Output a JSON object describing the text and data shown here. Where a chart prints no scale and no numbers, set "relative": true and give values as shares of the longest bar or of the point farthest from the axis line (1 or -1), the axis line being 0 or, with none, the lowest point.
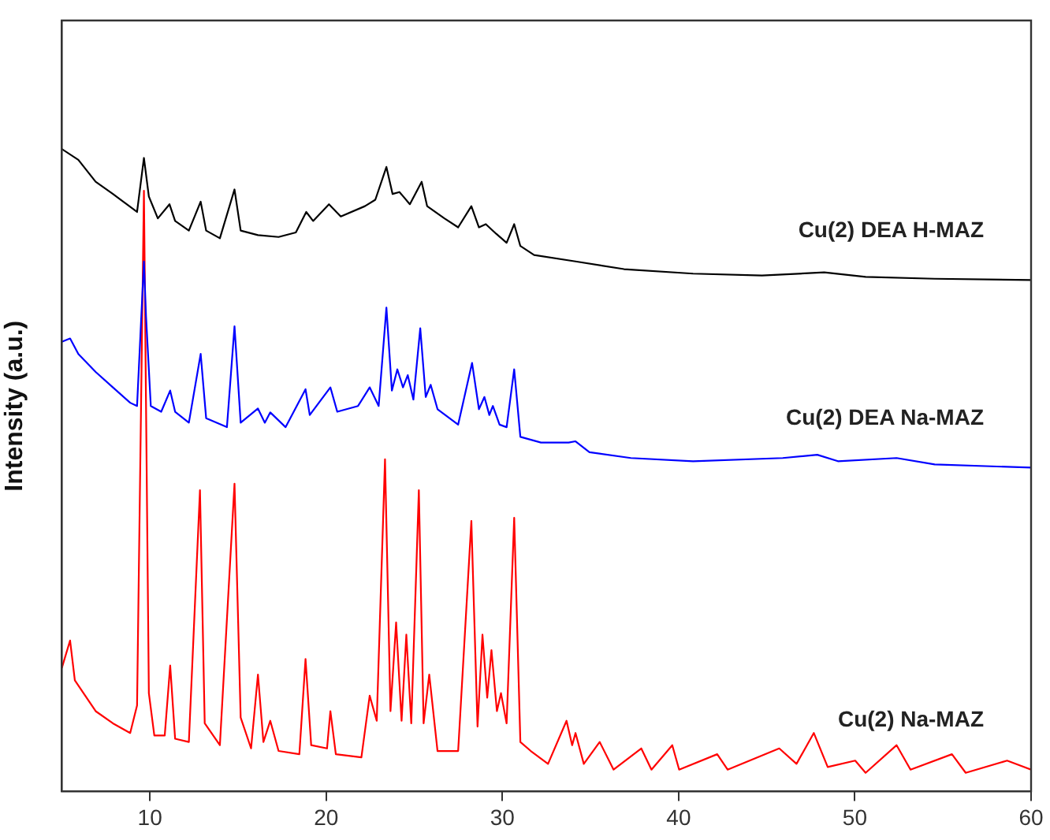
{
  "chart_data": {
    "type": "line",
    "ylabel": "Intensity (a.u.)",
    "relative": true,
    "xlim": [
      5,
      60
    ],
    "xticks": [
      10,
      20,
      30,
      40,
      50,
      60
    ],
    "grid": false,
    "legend": false,
    "series": [
      {
        "name": "Cu(2) DEA H-MAZ",
        "color": "#000000",
        "x": [
          5,
          5.94,
          6.92,
          7.9,
          9.27,
          9.66,
          9.94,
          10.45,
          11.11,
          11.43,
          12.21,
          12.88,
          13.19,
          13.97,
          14.8,
          15.15,
          16.13,
          17.3,
          18.28,
          18.87,
          19.26,
          20.16,
          20.83,
          22.2,
          22.79,
          23.42,
          23.77,
          24.16,
          24.75,
          25.42,
          25.73,
          26.71,
          27.49,
          28.24,
          28.67,
          29.06,
          29.65,
          30.24,
          30.67,
          31.02,
          31.8,
          34.15,
          36.9,
          40.82,
          44.73,
          48.26,
          50.61,
          54.53,
          60
        ],
        "values": [
          1.0,
          0.983,
          0.949,
          0.93,
          0.902,
          0.986,
          0.926,
          0.892,
          0.914,
          0.888,
          0.873,
          0.918,
          0.873,
          0.861,
          0.937,
          0.873,
          0.866,
          0.863,
          0.87,
          0.902,
          0.888,
          0.914,
          0.895,
          0.911,
          0.921,
          0.972,
          0.93,
          0.933,
          0.914,
          0.949,
          0.911,
          0.892,
          0.878,
          0.911,
          0.878,
          0.883,
          0.868,
          0.854,
          0.883,
          0.849,
          0.835,
          0.825,
          0.813,
          0.806,
          0.803,
          0.808,
          0.801,
          0.798,
          0.796
        ]
      },
      {
        "name": "Cu(2) DEA Na-MAZ",
        "color": "#0000ff",
        "x": [
          5,
          5.47,
          5.94,
          6.92,
          7.9,
          8.88,
          9.27,
          9.66,
          9.78,
          10.05,
          10.64,
          11.15,
          11.43,
          12.21,
          12.88,
          13.19,
          14.37,
          14.8,
          15.15,
          16.13,
          16.52,
          16.83,
          17.7,
          18.83,
          19.07,
          20.24,
          20.63,
          21.81,
          22.47,
          22.98,
          23.42,
          23.73,
          24.04,
          24.36,
          24.63,
          24.95,
          25.34,
          25.65,
          25.93,
          26.32,
          27.49,
          28.28,
          28.67,
          28.98,
          29.26,
          29.46,
          29.84,
          30.24,
          30.67,
          31.02,
          32.19,
          33.76,
          34.15,
          34.94,
          37.29,
          40.82,
          45.91,
          47.87,
          49.04,
          52.37,
          54.53,
          60
        ],
        "values": [
          0.7,
          0.705,
          0.681,
          0.653,
          0.629,
          0.605,
          0.6,
          0.825,
          0.739,
          0.6,
          0.591,
          0.624,
          0.591,
          0.574,
          0.681,
          0.581,
          0.567,
          0.724,
          0.574,
          0.596,
          0.574,
          0.59,
          0.567,
          0.626,
          0.586,
          0.629,
          0.591,
          0.6,
          0.629,
          0.6,
          0.753,
          0.624,
          0.657,
          0.629,
          0.648,
          0.61,
          0.721,
          0.614,
          0.633,
          0.595,
          0.571,
          0.667,
          0.595,
          0.614,
          0.586,
          0.6,
          0.571,
          0.567,
          0.657,
          0.552,
          0.543,
          0.543,
          0.545,
          0.528,
          0.519,
          0.514,
          0.519,
          0.524,
          0.514,
          0.519,
          0.509,
          0.504
        ]
      },
      {
        "name": "Cu(2) Na-MAZ",
        "color": "#ff0000",
        "x": [
          5,
          5.47,
          5.74,
          6.92,
          7.9,
          8.88,
          9.27,
          9.66,
          9.94,
          10.25,
          10.84,
          11.15,
          11.43,
          12.21,
          12.84,
          13.11,
          13.97,
          14.8,
          15.15,
          15.74,
          16.13,
          16.44,
          16.83,
          17.3,
          18.48,
          18.83,
          19.15,
          20.05,
          20.24,
          20.55,
          22.0,
          22.47,
          22.87,
          23.34,
          23.65,
          23.97,
          24.28,
          24.55,
          24.83,
          25.26,
          25.53,
          25.85,
          26.32,
          27.49,
          28.24,
          28.59,
          28.87,
          29.14,
          29.38,
          29.69,
          29.92,
          30.24,
          30.67,
          31.02,
          31.61,
          32.59,
          33.64,
          33.96,
          34.15,
          34.62,
          35.52,
          36.31,
          37.88,
          38.46,
          39.64,
          40.03,
          42.19,
          42.78,
          45.71,
          46.69,
          47.67,
          48.46,
          50.02,
          50.61,
          52.37,
          53.16,
          55.51,
          56.29,
          58.64,
          60
        ],
        "values": [
          0.192,
          0.235,
          0.173,
          0.125,
          0.106,
          0.091,
          0.134,
          0.935,
          0.153,
          0.087,
          0.087,
          0.196,
          0.082,
          0.077,
          0.469,
          0.106,
          0.072,
          0.479,
          0.115,
          0.067,
          0.182,
          0.077,
          0.11,
          0.063,
          0.058,
          0.206,
          0.072,
          0.067,
          0.125,
          0.058,
          0.053,
          0.149,
          0.11,
          0.517,
          0.125,
          0.263,
          0.11,
          0.244,
          0.106,
          0.469,
          0.106,
          0.182,
          0.063,
          0.063,
          0.421,
          0.101,
          0.244,
          0.146,
          0.22,
          0.125,
          0.153,
          0.106,
          0.426,
          0.077,
          0.063,
          0.043,
          0.11,
          0.072,
          0.091,
          0.043,
          0.077,
          0.034,
          0.067,
          0.034,
          0.072,
          0.034,
          0.058,
          0.034,
          0.067,
          0.043,
          0.091,
          0.038,
          0.048,
          0.029,
          0.072,
          0.034,
          0.058,
          0.029,
          0.048,
          0.034
        ]
      }
    ]
  }
}
